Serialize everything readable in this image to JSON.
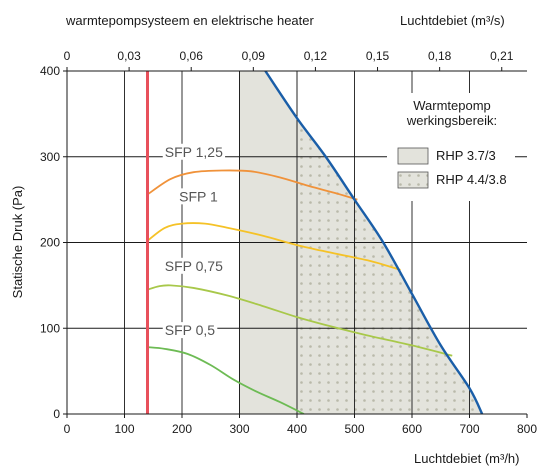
{
  "chart_data": {
    "type": "line",
    "title": "warmtepompsysteem en elektrische heater",
    "xlabel": "Luchtdebiet (m³/h)",
    "x2label": "Luchtdebiet (m³/s)",
    "ylabel": "Statische Druk (Pa)",
    "xlim": [
      0,
      800
    ],
    "ylim": [
      0,
      400
    ],
    "x2lim": [
      0,
      0.2222
    ],
    "xticks": [
      0,
      100,
      200,
      300,
      400,
      500,
      600,
      700,
      800
    ],
    "yticks": [
      0,
      100,
      200,
      300,
      400
    ],
    "x2ticks": [
      {
        "value": 0,
        "label": "0"
      },
      {
        "value": 0.03,
        "label": "0,03"
      },
      {
        "value": 0.06,
        "label": "0,06"
      },
      {
        "value": 0.09,
        "label": "0,09"
      },
      {
        "value": 0.12,
        "label": "0,12"
      },
      {
        "value": 0.15,
        "label": "0,15"
      },
      {
        "value": 0.18,
        "label": "0,18"
      },
      {
        "value": 0.21,
        "label": "0,21"
      }
    ],
    "grid": true,
    "min_flow_line": {
      "x": 140,
      "color": "#e8505b"
    },
    "max_curve": {
      "color": "#1a5ea8",
      "points": [
        [
          345,
          400
        ],
        [
          400,
          345
        ],
        [
          450,
          300
        ],
        [
          500,
          250
        ],
        [
          550,
          200
        ],
        [
          600,
          140
        ],
        [
          650,
          80
        ],
        [
          700,
          30
        ],
        [
          722,
          0
        ]
      ]
    },
    "regions": [
      {
        "name": "RHP 3.7/3",
        "x_from": 300,
        "color": "#e3e3dc"
      },
      {
        "name": "RHP 4.4/3.8",
        "x_from": 400,
        "color": "#e3e3dc",
        "pattern": "dots"
      }
    ],
    "legend": {
      "title_line1": "Warmtepomp",
      "title_line2": "werkingsbereik:",
      "position": "top-right"
    },
    "series": [
      {
        "name": "SFP 1,25",
        "color": "#f0923a",
        "label_at": [
          170,
          300
        ],
        "points": [
          [
            140,
            256
          ],
          [
            180,
            274
          ],
          [
            220,
            282
          ],
          [
            270,
            284
          ],
          [
            320,
            283
          ],
          [
            370,
            276
          ],
          [
            420,
            266
          ],
          [
            470,
            257
          ],
          [
            505,
            250
          ]
        ]
      },
      {
        "name": "SFP 1",
        "color": "#f5c227",
        "label_at": [
          195,
          248
        ],
        "points": [
          [
            140,
            202
          ],
          [
            170,
            217
          ],
          [
            200,
            222
          ],
          [
            240,
            222
          ],
          [
            280,
            217
          ],
          [
            340,
            208
          ],
          [
            400,
            197
          ],
          [
            460,
            188
          ],
          [
            530,
            178
          ],
          [
            580,
            168
          ]
        ]
      },
      {
        "name": "SFP 0,75",
        "color": "#a8c84a",
        "label_at": [
          170,
          167
        ],
        "points": [
          [
            140,
            145
          ],
          [
            160,
            149
          ],
          [
            180,
            150
          ],
          [
            220,
            147
          ],
          [
            280,
            138
          ],
          [
            340,
            126
          ],
          [
            400,
            113
          ],
          [
            460,
            102
          ],
          [
            520,
            92
          ],
          [
            600,
            80
          ],
          [
            670,
            68
          ]
        ]
      },
      {
        "name": "SFP 0,5",
        "color": "#6dbb54",
        "label_at": [
          170,
          92
        ],
        "points": [
          [
            140,
            78
          ],
          [
            170,
            76
          ],
          [
            210,
            70
          ],
          [
            250,
            57
          ],
          [
            290,
            40
          ],
          [
            330,
            26
          ],
          [
            370,
            14
          ],
          [
            412,
            0
          ]
        ]
      }
    ]
  }
}
